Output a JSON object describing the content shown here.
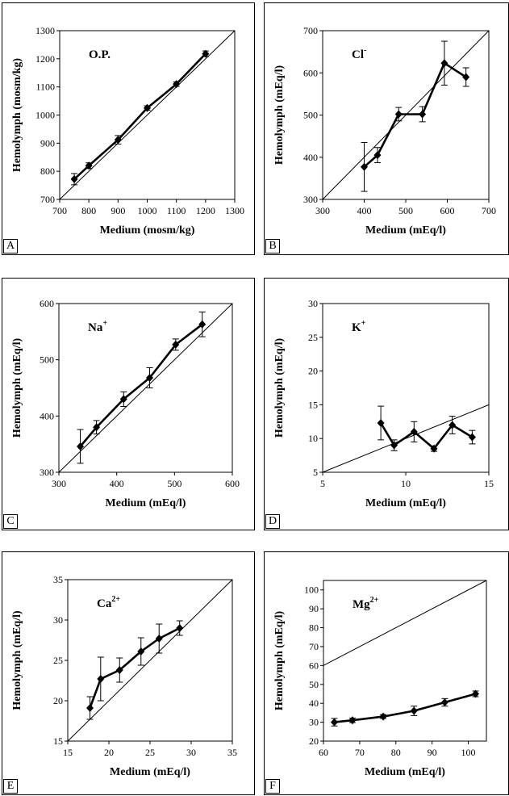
{
  "chart_data": [
    {
      "panel": "A",
      "type": "line",
      "title": "O.P.",
      "title_sup": "",
      "xlabel": "Medium (mosm/kg)",
      "ylabel": "Hemolymph (mosm/kg)",
      "xlim": [
        700,
        1300
      ],
      "ylim": [
        700,
        1300
      ],
      "xticks": [
        700,
        800,
        900,
        1000,
        1100,
        1200,
        1300
      ],
      "yticks": [
        700,
        800,
        900,
        1000,
        1100,
        1200,
        1300
      ],
      "identity_line": [
        [
          700,
          700
        ],
        [
          1300,
          1300
        ]
      ],
      "series": [
        {
          "x": [
            750,
            800,
            900,
            1000,
            1100,
            1200
          ],
          "y": [
            772,
            820,
            912,
            1025,
            1110,
            1218
          ],
          "err": [
            20,
            10,
            15,
            8,
            8,
            10
          ]
        }
      ]
    },
    {
      "panel": "B",
      "type": "line",
      "title": "Cl",
      "title_sup": "-",
      "xlabel": "Medium (mEq/l)",
      "ylabel": "Hemolymph (mEq/l)",
      "xlim": [
        300,
        700
      ],
      "ylim": [
        300,
        700
      ],
      "xticks": [
        300,
        400,
        500,
        600,
        700
      ],
      "yticks": [
        300,
        400,
        500,
        600,
        700
      ],
      "identity_line": [
        [
          300,
          300
        ],
        [
          700,
          700
        ]
      ],
      "series": [
        {
          "x": [
            400,
            432,
            483,
            540,
            593,
            645
          ],
          "y": [
            377,
            405,
            502,
            502,
            623,
            590
          ],
          "err": [
            58,
            18,
            16,
            18,
            52,
            22
          ]
        }
      ]
    },
    {
      "panel": "C",
      "type": "line",
      "title": "Na",
      "title_sup": "+",
      "xlabel": "Medium (mEq/l)",
      "ylabel": "Hemolymph (mEq/l)",
      "xlim": [
        300,
        600
      ],
      "ylim": [
        300,
        600
      ],
      "xticks": [
        300,
        400,
        500,
        600
      ],
      "yticks": [
        300,
        400,
        500,
        600
      ],
      "identity_line": [
        [
          300,
          300
        ],
        [
          600,
          600
        ]
      ],
      "series": [
        {
          "x": [
            337,
            365,
            412,
            457,
            502,
            548
          ],
          "y": [
            346,
            380,
            430,
            468,
            527,
            563
          ],
          "err": [
            30,
            12,
            13,
            18,
            10,
            22
          ]
        }
      ]
    },
    {
      "panel": "D",
      "type": "line",
      "title": "K",
      "title_sup": "+",
      "xlabel": "Medium (mEq/l)",
      "ylabel": "Hemolymph (mEq/l)",
      "xlim": [
        5,
        15
      ],
      "ylim": [
        5,
        30
      ],
      "xticks": [
        5,
        10,
        15
      ],
      "yticks": [
        5,
        10,
        15,
        20,
        25,
        30
      ],
      "identity_line": [
        [
          5,
          5
        ],
        [
          15,
          15
        ]
      ],
      "series": [
        {
          "x": [
            8.5,
            9.3,
            10.5,
            11.7,
            12.8,
            14
          ],
          "y": [
            12.3,
            9,
            11,
            8.5,
            12,
            10.2
          ],
          "err": [
            2.5,
            0.8,
            1.5,
            0.4,
            1.3,
            1.0
          ]
        }
      ]
    },
    {
      "panel": "E",
      "type": "line",
      "title": "Ca",
      "title_sup": "2+",
      "xlabel": "Medium (mEq/l)",
      "ylabel": "Hemolymph (mEq/l)",
      "xlim": [
        15,
        35
      ],
      "ylim": [
        15,
        35
      ],
      "xticks": [
        15,
        20,
        25,
        30,
        35
      ],
      "yticks": [
        15,
        20,
        25,
        30,
        35
      ],
      "identity_line": [
        [
          15,
          15
        ],
        [
          35,
          35
        ]
      ],
      "series": [
        {
          "x": [
            17.7,
            19,
            21.3,
            23.9,
            26.1,
            28.6
          ],
          "y": [
            19.1,
            22.7,
            23.8,
            26.1,
            27.7,
            29
          ],
          "err": [
            1.4,
            2.7,
            1.5,
            1.7,
            1.8,
            0.9
          ]
        }
      ]
    },
    {
      "panel": "F",
      "type": "line",
      "title": "Mg",
      "title_sup": "2+",
      "xlabel": "Medium (mEq/l)",
      "ylabel": "Hemolymph (mEq/l)",
      "xlim": [
        60,
        105
      ],
      "ylim": [
        20,
        105
      ],
      "xticks": [
        60,
        70,
        80,
        90,
        100
      ],
      "yticks": [
        20,
        30,
        40,
        50,
        60,
        70,
        80,
        90,
        100
      ],
      "identity_line": [
        [
          60,
          60
        ],
        [
          105,
          105
        ]
      ],
      "series": [
        {
          "x": [
            63,
            68,
            76.5,
            85,
            93.5,
            102
          ],
          "y": [
            30,
            31,
            33,
            36,
            40.5,
            45
          ],
          "err": [
            2,
            1.2,
            1,
            2.5,
            2,
            1.5
          ]
        }
      ]
    }
  ]
}
